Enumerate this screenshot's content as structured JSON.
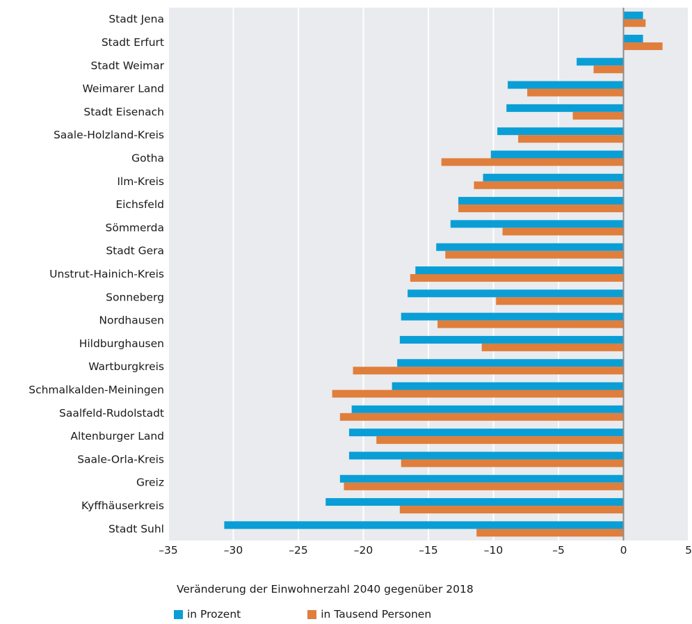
{
  "chart_data": {
    "type": "bar",
    "orientation": "horizontal",
    "categories": [
      "Stadt Jena",
      "Stadt Erfurt",
      "Stadt Weimar",
      "Weimarer Land",
      "Stadt Eisenach",
      "Saale-Holzland-Kreis",
      "Gotha",
      "Ilm-Kreis",
      "Eichsfeld",
      "Sömmerda",
      "Stadt Gera",
      "Unstrut-Hainich-Kreis",
      "Sonneberg",
      "Nordhausen",
      "Hildburghausen",
      "Wartburgkreis",
      "Schmalkalden-Meiningen",
      "Saalfeld-Rudolstadt",
      "Altenburger Land",
      "Saale-Orla-Kreis",
      "Greiz",
      "Kyffhäuserkreis",
      "Stadt Suhl"
    ],
    "series": [
      {
        "name": "in Prozent",
        "color": "#0a9ed6",
        "values": [
          1.5,
          1.5,
          -3.6,
          -8.9,
          -9.0,
          -9.7,
          -10.2,
          -10.8,
          -12.7,
          -13.3,
          -14.4,
          -16.0,
          -16.6,
          -17.1,
          -17.2,
          -17.4,
          -17.8,
          -20.9,
          -21.1,
          -21.1,
          -21.8,
          -22.9,
          -30.7
        ]
      },
      {
        "name": "in Tausend Personen",
        "color": "#e07e3c",
        "values": [
          1.7,
          3.0,
          -2.3,
          -7.4,
          -3.9,
          -8.1,
          -14.0,
          -11.5,
          -12.7,
          -9.3,
          -13.7,
          -16.4,
          -9.8,
          -14.3,
          -10.9,
          -20.8,
          -22.4,
          -21.8,
          -19.0,
          -17.1,
          -21.5,
          -17.2,
          -11.3
        ]
      }
    ],
    "xlabel": "Veränderung der Einwohnerzahl 2040 gegenüber 2018",
    "xlim": [
      -35,
      5
    ],
    "xticks": [
      -35,
      -30,
      -25,
      -20,
      -15,
      -10,
      -5,
      0,
      5
    ],
    "xtick_labels": [
      "–35",
      "–30",
      "–25",
      "–20",
      "–15",
      "–10",
      "–5",
      "0",
      "5"
    ],
    "grid": true,
    "plot_background": "#e9ebee",
    "legend_position": "bottom-left"
  },
  "legend": {
    "prozent_label": "in Prozent",
    "tausend_label": "in Tausend Personen"
  }
}
